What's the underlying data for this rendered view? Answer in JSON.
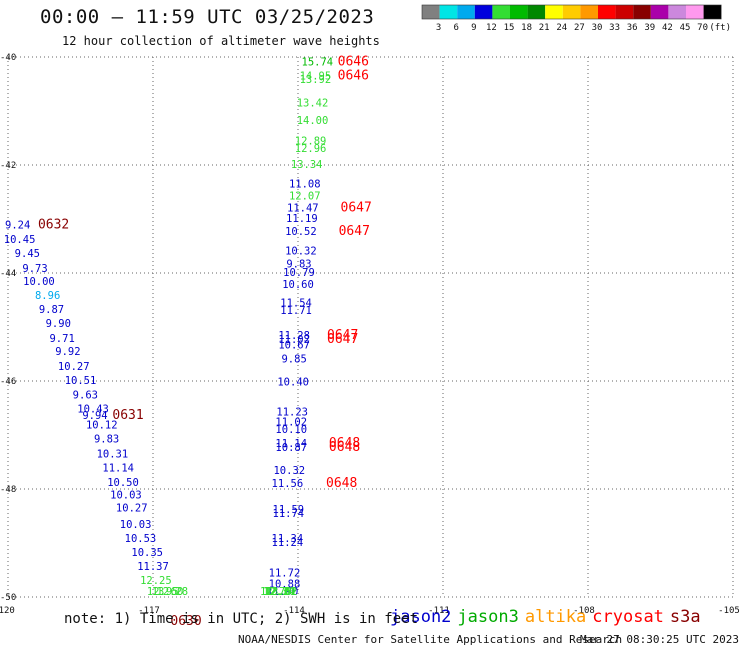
{
  "header": {
    "title": "00:00 – 11:59 UTC 03/25/2023",
    "subtitle": "12 hour collection of altimeter wave heights"
  },
  "colorbar": {
    "labels": [
      "3",
      "6",
      "9",
      "12",
      "15",
      "18",
      "21",
      "24",
      "27",
      "30",
      "33",
      "36",
      "39",
      "42",
      "45",
      "70",
      "(ft)"
    ],
    "colors": [
      "#808080",
      "#00e5e5",
      "#00aaee",
      "#0000dd",
      "#33dd33",
      "#00bb00",
      "#008800",
      "#ffff00",
      "#ffcc00",
      "#ff9900",
      "#ff0000",
      "#cc0000",
      "#880000",
      "#aa00aa",
      "#cc88dd",
      "#ff99ee",
      "#000000"
    ]
  },
  "footer": {
    "note": "note: 1) Time is in UTC; 2) SWH is in feet",
    "credit": "NOAA/NESDIS Center for Satellite Applications and Research",
    "timestamp": "Mar 27 08:30:25 UTC 2023"
  },
  "satellites": [
    {
      "name": "jason2",
      "color": "#0000cc"
    },
    {
      "name": "jason3",
      "color": "#00aa00"
    },
    {
      "name": "altika",
      "color": "#ff9900"
    },
    {
      "name": "cryosat",
      "color": "#ff0000"
    },
    {
      "name": "s3a",
      "color": "#880000"
    }
  ],
  "chart_data": {
    "type": "scatter",
    "title": "00:00 – 11:59 UTC 03/25/2023",
    "subtitle": "12 hour collection of altimeter wave heights",
    "xlim": [
      -120,
      -105
    ],
    "ylim": [
      -50,
      -40
    ],
    "x_ticks": [
      "-120",
      "-117",
      "-114",
      "-111",
      "-108",
      "-105"
    ],
    "y_ticks": [
      "-40",
      "-42",
      "-44",
      "-46",
      "-48",
      "-50"
    ],
    "x_tick_values": [
      -120,
      -117,
      -114,
      -111,
      -108,
      -105
    ],
    "y_tick_values": [
      -40,
      -42,
      -44,
      -46,
      -48,
      -50
    ],
    "grid": true,
    "units": "ft",
    "series": [
      {
        "name": "track 1",
        "points": [
          {
            "lon": -119.8,
            "lat": -43.18,
            "swh": "9.24",
            "color": "#0000cc"
          },
          {
            "lon": -119.76,
            "lat": -43.44,
            "swh": "10.45",
            "color": "#0000cc"
          },
          {
            "lon": -119.6,
            "lat": -43.7,
            "swh": "9.45",
            "color": "#0000cc"
          },
          {
            "lon": -119.44,
            "lat": -43.98,
            "swh": "9.73",
            "color": "#0000cc"
          },
          {
            "lon": -119.36,
            "lat": -44.22,
            "swh": "10.00",
            "color": "#0000cc"
          },
          {
            "lon": -119.18,
            "lat": -44.48,
            "swh": "8.96",
            "color": "#00aaee"
          },
          {
            "lon": -119.1,
            "lat": -44.74,
            "swh": "9.87",
            "color": "#0000cc"
          },
          {
            "lon": -118.96,
            "lat": -45.0,
            "swh": "9.90",
            "color": "#0000cc"
          },
          {
            "lon": -118.88,
            "lat": -45.28,
            "swh": "9.71",
            "color": "#0000cc"
          },
          {
            "lon": -118.76,
            "lat": -45.52,
            "swh": "9.92",
            "color": "#0000cc"
          },
          {
            "lon": -118.64,
            "lat": -45.8,
            "swh": "10.27",
            "color": "#0000cc"
          },
          {
            "lon": -118.5,
            "lat": -46.06,
            "swh": "10.51",
            "color": "#0000cc"
          },
          {
            "lon": -118.4,
            "lat": -46.32,
            "swh": "9.63",
            "color": "#0000cc"
          },
          {
            "lon": -118.24,
            "lat": -46.58,
            "swh": "10.43",
            "color": "#0000cc"
          },
          {
            "lon": -118.2,
            "lat": -46.7,
            "swh": "9.94",
            "color": "#0000cc"
          },
          {
            "lon": -118.06,
            "lat": -46.88,
            "swh": "10.12",
            "color": "#0000cc"
          },
          {
            "lon": -117.96,
            "lat": -47.14,
            "swh": "9.83",
            "color": "#0000cc"
          },
          {
            "lon": -117.84,
            "lat": -47.42,
            "swh": "10.31",
            "color": "#0000cc"
          },
          {
            "lon": -117.72,
            "lat": -47.68,
            "swh": "11.14",
            "color": "#0000cc"
          },
          {
            "lon": -117.62,
            "lat": -47.94,
            "swh": "10.50",
            "color": "#0000cc"
          },
          {
            "lon": -117.56,
            "lat": -48.18,
            "swh": "10.03",
            "color": "#0000cc"
          },
          {
            "lon": -117.44,
            "lat": -48.42,
            "swh": "10.27",
            "color": "#0000cc"
          },
          {
            "lon": -117.36,
            "lat": -48.72,
            "swh": "10.03",
            "color": "#0000cc"
          },
          {
            "lon": -117.26,
            "lat": -48.98,
            "swh": "10.53",
            "color": "#0000cc"
          },
          {
            "lon": -117.12,
            "lat": -49.24,
            "swh": "10.35",
            "color": "#0000cc"
          },
          {
            "lon": -117.0,
            "lat": -49.5,
            "swh": "11.37",
            "color": "#0000cc"
          },
          {
            "lon": -116.94,
            "lat": -49.76,
            "swh": "12.25",
            "color": "#33dd33"
          },
          {
            "lon": -116.8,
            "lat": -50.02,
            "swh": "12.95",
            "color": "#33dd33"
          },
          {
            "lon": -116.7,
            "lat": -50.28,
            "swh": "13.60",
            "color": "#33dd33"
          },
          {
            "lon": -116.6,
            "lat": -50.52,
            "swh": "12.28",
            "color": "#33dd33"
          }
        ]
      },
      {
        "name": "track 2",
        "points": [
          {
            "lon": -113.6,
            "lat": -40.16,
            "swh": "15.74",
            "color": "#00bb00"
          },
          {
            "lon": -113.64,
            "lat": -40.42,
            "swh": "14.95",
            "color": "#33dd33"
          },
          {
            "lon": -113.64,
            "lat": -40.48,
            "swh": "13.92",
            "color": "#33dd33"
          },
          {
            "lon": -113.7,
            "lat": -40.92,
            "swh": "13.42",
            "color": "#33dd33"
          },
          {
            "lon": -113.7,
            "lat": -41.24,
            "swh": "14.00",
            "color": "#33dd33"
          },
          {
            "lon": -113.74,
            "lat": -41.62,
            "swh": "12.89",
            "color": "#33dd33"
          },
          {
            "lon": -113.74,
            "lat": -41.76,
            "swh": "12.96",
            "color": "#33dd33"
          },
          {
            "lon": -113.82,
            "lat": -42.06,
            "swh": "13.34",
            "color": "#33dd33"
          },
          {
            "lon": -113.86,
            "lat": -42.42,
            "swh": "11.08",
            "color": "#0000cc"
          },
          {
            "lon": -113.86,
            "lat": -42.64,
            "swh": "12.07",
            "color": "#33dd33"
          },
          {
            "lon": -113.9,
            "lat": -42.86,
            "swh": "11.47",
            "color": "#0000cc"
          },
          {
            "lon": -113.92,
            "lat": -43.06,
            "swh": "11.19",
            "color": "#0000cc"
          },
          {
            "lon": -113.94,
            "lat": -43.3,
            "swh": "10.52",
            "color": "#0000cc"
          },
          {
            "lon": -113.94,
            "lat": -43.66,
            "swh": "10.32",
            "color": "#0000cc"
          },
          {
            "lon": -113.98,
            "lat": -43.9,
            "swh": "9.83",
            "color": "#0000cc"
          },
          {
            "lon": -113.98,
            "lat": -44.06,
            "swh": "10.79",
            "color": "#0000cc"
          },
          {
            "lon": -114.0,
            "lat": -44.28,
            "swh": "10.60",
            "color": "#0000cc"
          },
          {
            "lon": -114.04,
            "lat": -44.62,
            "swh": "11.54",
            "color": "#0000cc"
          },
          {
            "lon": -114.04,
            "lat": -44.76,
            "swh": "11.71",
            "color": "#0000cc"
          },
          {
            "lon": -114.08,
            "lat": -45.22,
            "swh": "11.28",
            "color": "#0000cc"
          },
          {
            "lon": -114.08,
            "lat": -45.3,
            "swh": "11.02",
            "color": "#0000cc"
          },
          {
            "lon": -114.08,
            "lat": -45.4,
            "swh": "10.67",
            "color": "#0000cc"
          },
          {
            "lon": -114.08,
            "lat": -45.66,
            "swh": "9.85",
            "color": "#0000cc"
          },
          {
            "lon": -114.1,
            "lat": -46.08,
            "swh": "10.40",
            "color": "#0000cc"
          },
          {
            "lon": -114.12,
            "lat": -46.64,
            "swh": "11.23",
            "color": "#0000cc"
          },
          {
            "lon": -114.14,
            "lat": -46.82,
            "swh": "11.02",
            "color": "#0000cc"
          },
          {
            "lon": -114.14,
            "lat": -46.96,
            "swh": "10.10",
            "color": "#0000cc"
          },
          {
            "lon": -114.14,
            "lat": -47.22,
            "swh": "11.14",
            "color": "#0000cc"
          },
          {
            "lon": -114.14,
            "lat": -47.3,
            "swh": "10.87",
            "color": "#0000cc"
          },
          {
            "lon": -114.18,
            "lat": -47.72,
            "swh": "10.32",
            "color": "#0000cc"
          },
          {
            "lon": -114.22,
            "lat": -47.96,
            "swh": "11.56",
            "color": "#0000cc"
          },
          {
            "lon": -114.2,
            "lat": -48.44,
            "swh": "11.59",
            "color": "#0000cc"
          },
          {
            "lon": -114.2,
            "lat": -48.52,
            "swh": "11.74",
            "color": "#0000cc"
          },
          {
            "lon": -114.22,
            "lat": -48.98,
            "swh": "11.34",
            "color": "#0000cc"
          },
          {
            "lon": -114.22,
            "lat": -49.06,
            "swh": "11.24",
            "color": "#0000cc"
          },
          {
            "lon": -114.28,
            "lat": -49.62,
            "swh": "11.72",
            "color": "#0000cc"
          },
          {
            "lon": -114.28,
            "lat": -49.82,
            "swh": "10.88",
            "color": "#0000cc"
          },
          {
            "lon": -114.32,
            "lat": -50.14,
            "swh": "11.90",
            "color": "#0000cc"
          },
          {
            "lon": -114.34,
            "lat": -50.48,
            "swh": "13.62",
            "color": "#33dd33"
          },
          {
            "lon": -114.36,
            "lat": -50.66,
            "swh": "12.01",
            "color": "#33dd33"
          },
          {
            "lon": -114.38,
            "lat": -50.94,
            "swh": "12.20",
            "color": "#33dd33"
          },
          {
            "lon": -114.4,
            "lat": -51.08,
            "swh": "12.34",
            "color": "#33dd33"
          },
          {
            "lon": -114.46,
            "lat": -51.4,
            "swh": "12.70",
            "color": "#33dd33"
          }
        ]
      }
    ],
    "time_labels": [
      {
        "lon": -119.38,
        "lat": -43.18,
        "label": "0632",
        "color": "#880000"
      },
      {
        "lon": -117.84,
        "lat": -46.7,
        "label": "0631",
        "color": "#880000"
      },
      {
        "lon": -116.64,
        "lat": -50.52,
        "label": "0630",
        "color": "#880000"
      },
      {
        "lon": -113.18,
        "lat": -40.16,
        "label": "0646",
        "color": "#ff0000"
      },
      {
        "lon": -113.18,
        "lat": -40.42,
        "label": "0646",
        "color": "#ff0000"
      },
      {
        "lon": -113.12,
        "lat": -42.86,
        "label": "0647",
        "color": "#ff0000"
      },
      {
        "lon": -113.16,
        "lat": -43.3,
        "label": "0647",
        "color": "#ff0000"
      },
      {
        "lon": -113.4,
        "lat": -45.22,
        "label": "0647",
        "color": "#ff0000"
      },
      {
        "lon": -113.4,
        "lat": -45.3,
        "label": "0647",
        "color": "#ff0000"
      },
      {
        "lon": -113.36,
        "lat": -47.22,
        "label": "0648",
        "color": "#ff0000"
      },
      {
        "lon": -113.36,
        "lat": -47.3,
        "label": "0648",
        "color": "#ff0000"
      },
      {
        "lon": -113.42,
        "lat": -47.96,
        "label": "0648",
        "color": "#ff0000"
      }
    ]
  }
}
